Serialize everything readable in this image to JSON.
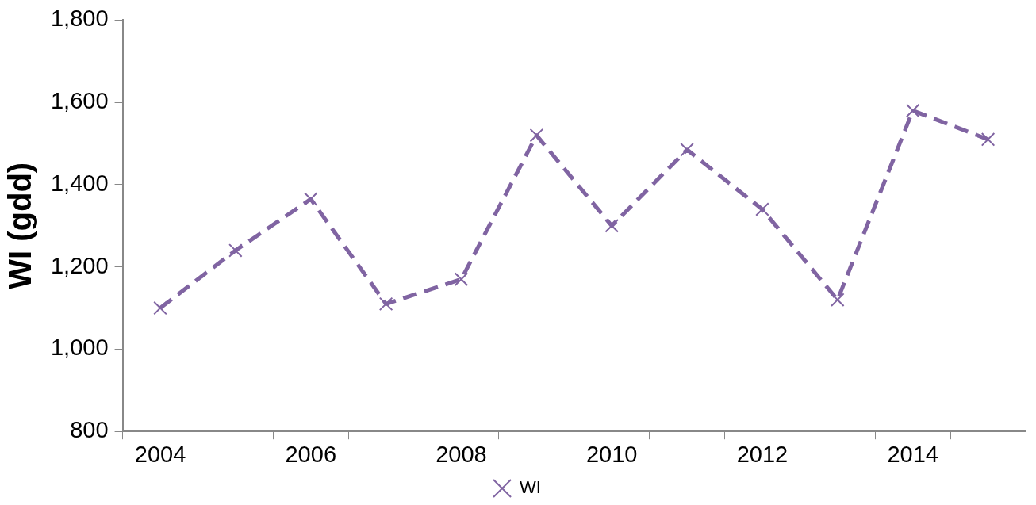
{
  "chart_data": {
    "type": "line",
    "ylabel": "WI (gdd)",
    "categories": [
      "2004",
      null,
      "2006",
      null,
      "2008",
      null,
      "2010",
      null,
      "2012",
      null,
      "2014",
      null
    ],
    "series": [
      {
        "name": "WI",
        "color": "#8064a2",
        "values": [
          1100,
          1240,
          1365,
          1110,
          1170,
          1520,
          1300,
          1485,
          1340,
          1120,
          1580,
          1510
        ]
      }
    ],
    "ylim": [
      800,
      1800
    ],
    "yticks": [
      {
        "value": 800,
        "label": "800"
      },
      {
        "value": 1000,
        "label": "1,000"
      },
      {
        "value": 1200,
        "label": "1,200"
      },
      {
        "value": 1400,
        "label": "1,400"
      },
      {
        "value": 1600,
        "label": "1,600"
      },
      {
        "value": 1800,
        "label": "1,800"
      }
    ],
    "grid": false,
    "legend": "bottom",
    "marker": "cross",
    "line_style": "dashed"
  }
}
